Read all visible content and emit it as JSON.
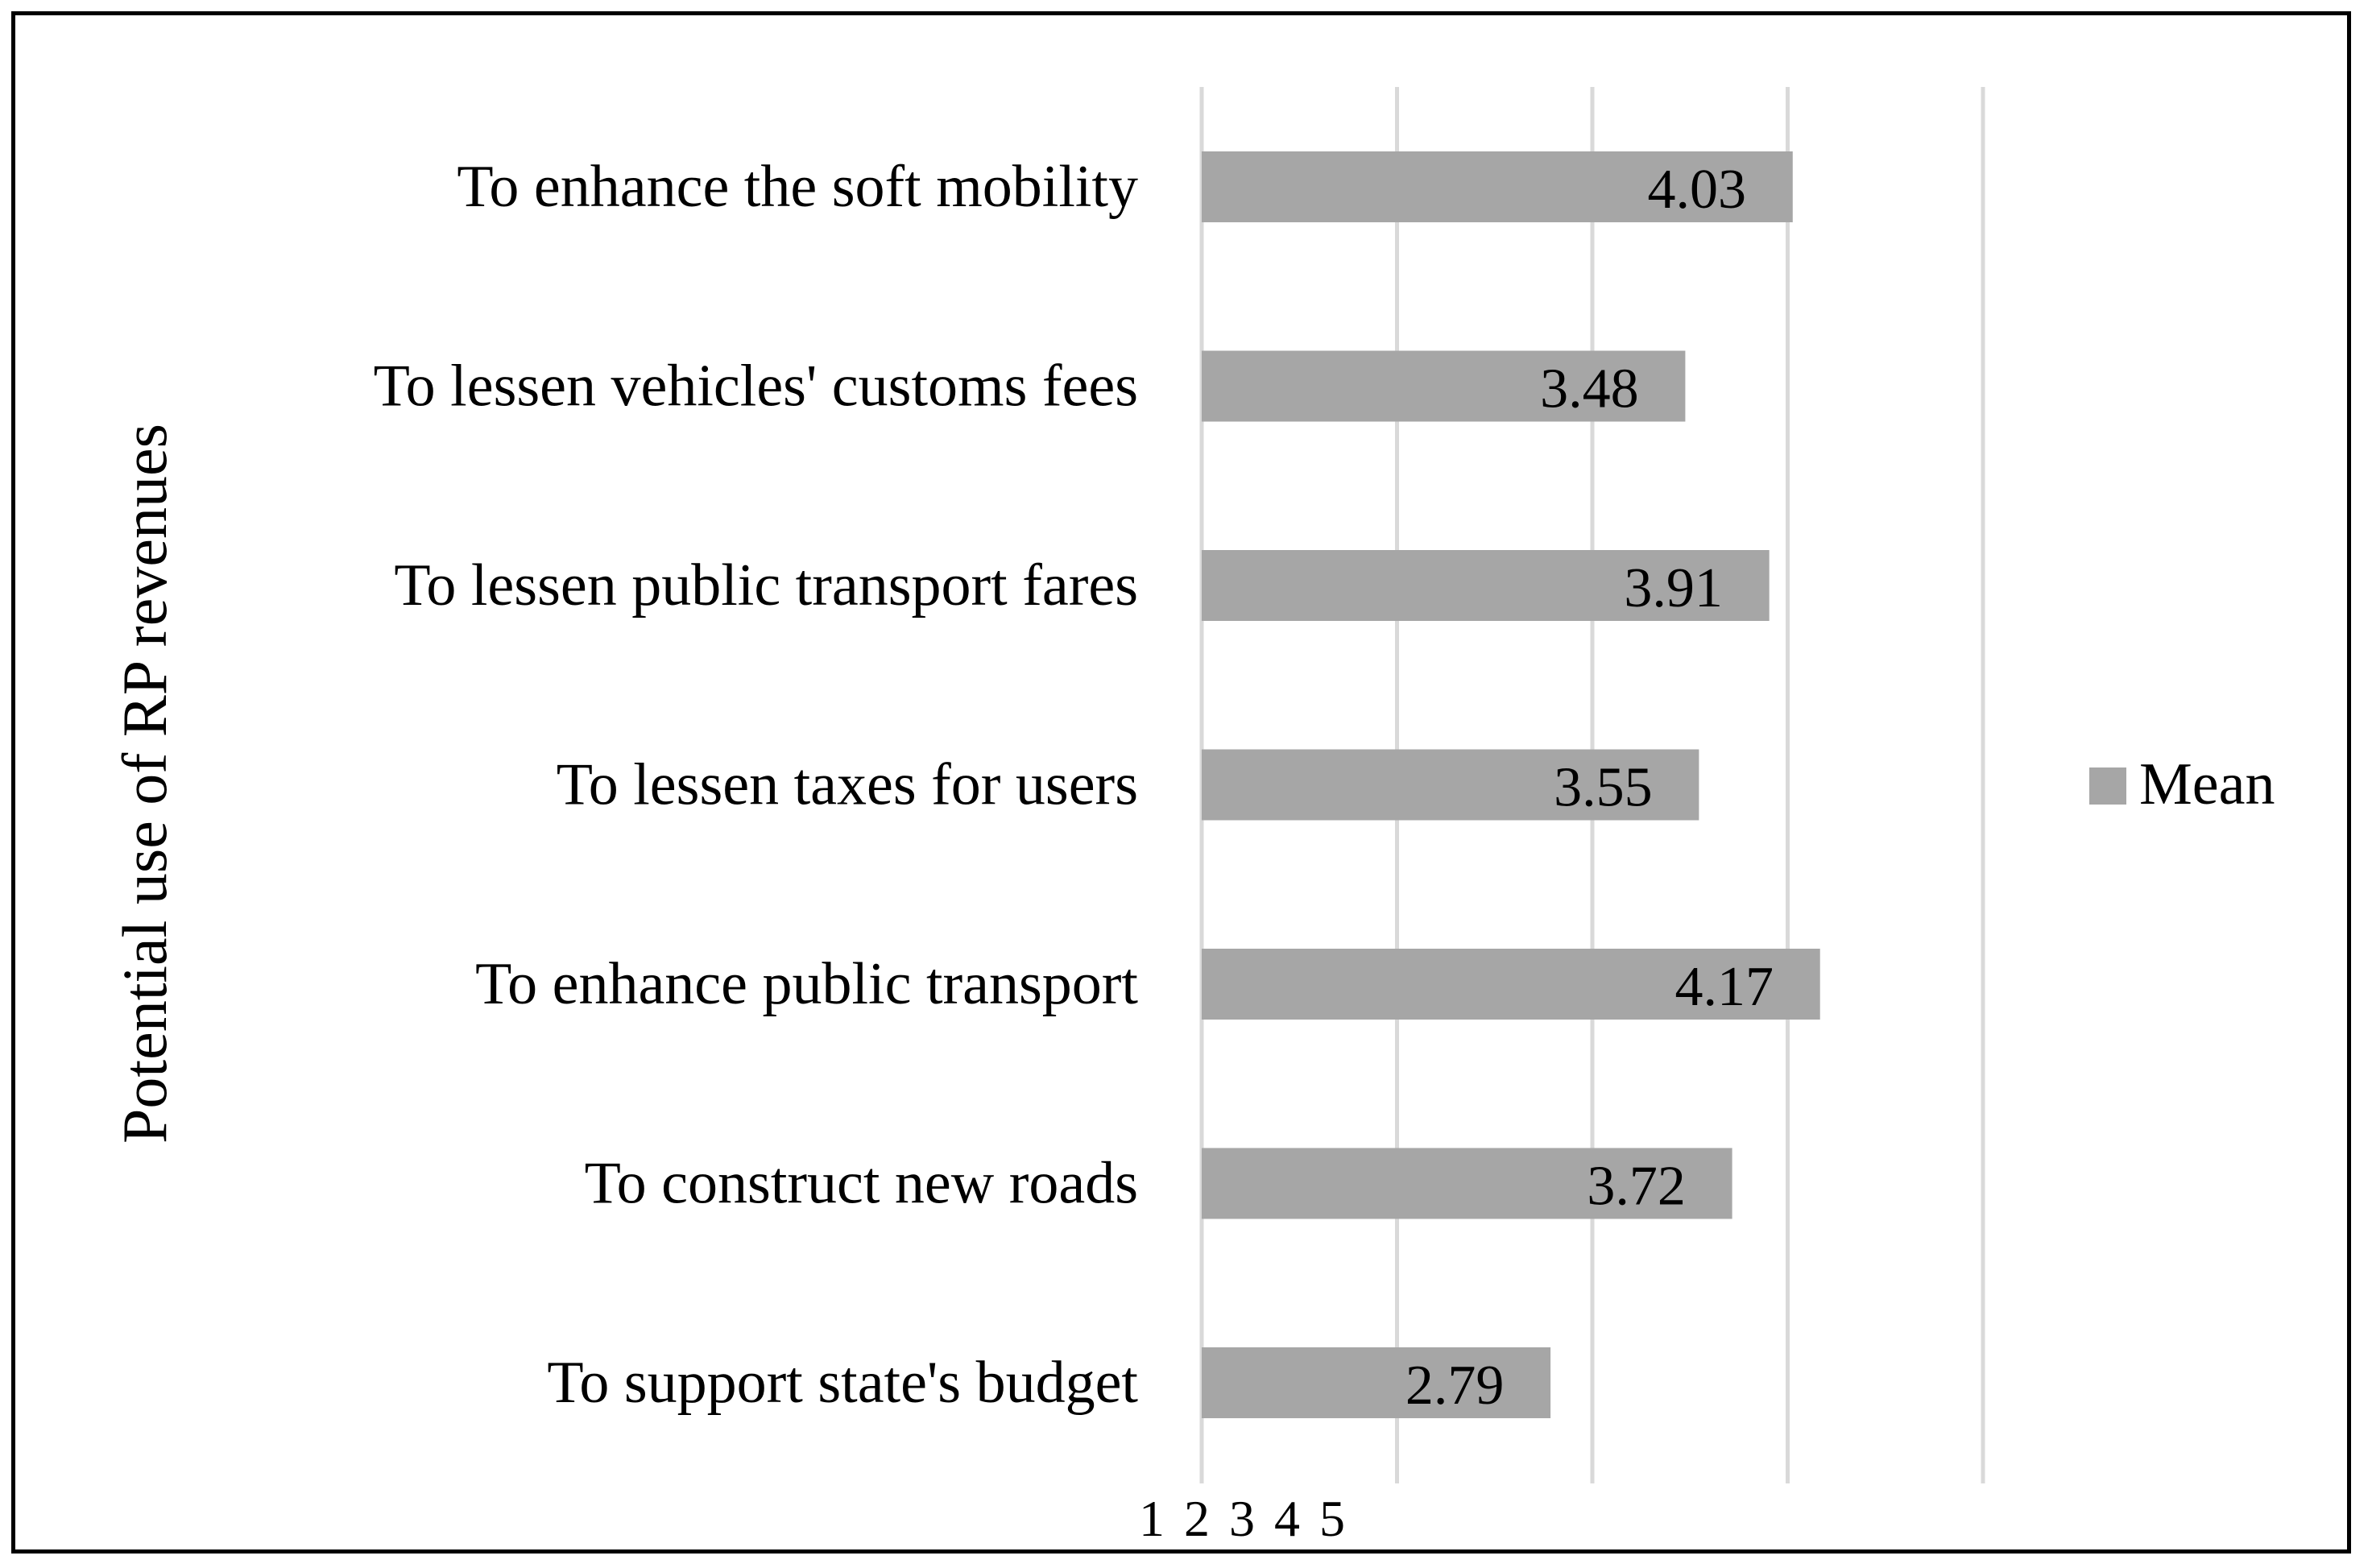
{
  "chart_data": {
    "type": "bar",
    "orientation": "horizontal",
    "categories": [
      "To enhance the soft mobility",
      "To lessen vehicles' customs fees",
      "To lessen public transport fares",
      "To lessen taxes for users",
      "To enhance public transport",
      "To construct new roads",
      "To support state's budget"
    ],
    "series": [
      {
        "name": "Mean",
        "values": [
          4.03,
          3.48,
          3.91,
          3.55,
          4.17,
          3.72,
          2.79
        ],
        "labels": [
          "4.03",
          "3.48",
          "3.91",
          "3.55",
          "4.17",
          "3.72",
          "2.79"
        ]
      }
    ],
    "xlim": [
      1,
      5
    ],
    "x_ticks": [
      "1",
      "2",
      "3",
      "4",
      "5"
    ],
    "ylabel": "Potential use of RP revenues",
    "xlabel": "",
    "title": "",
    "grid": "vertical",
    "legend": "right",
    "bar_color": "#a6a6a6",
    "grid_color": "#d9d9d9"
  }
}
